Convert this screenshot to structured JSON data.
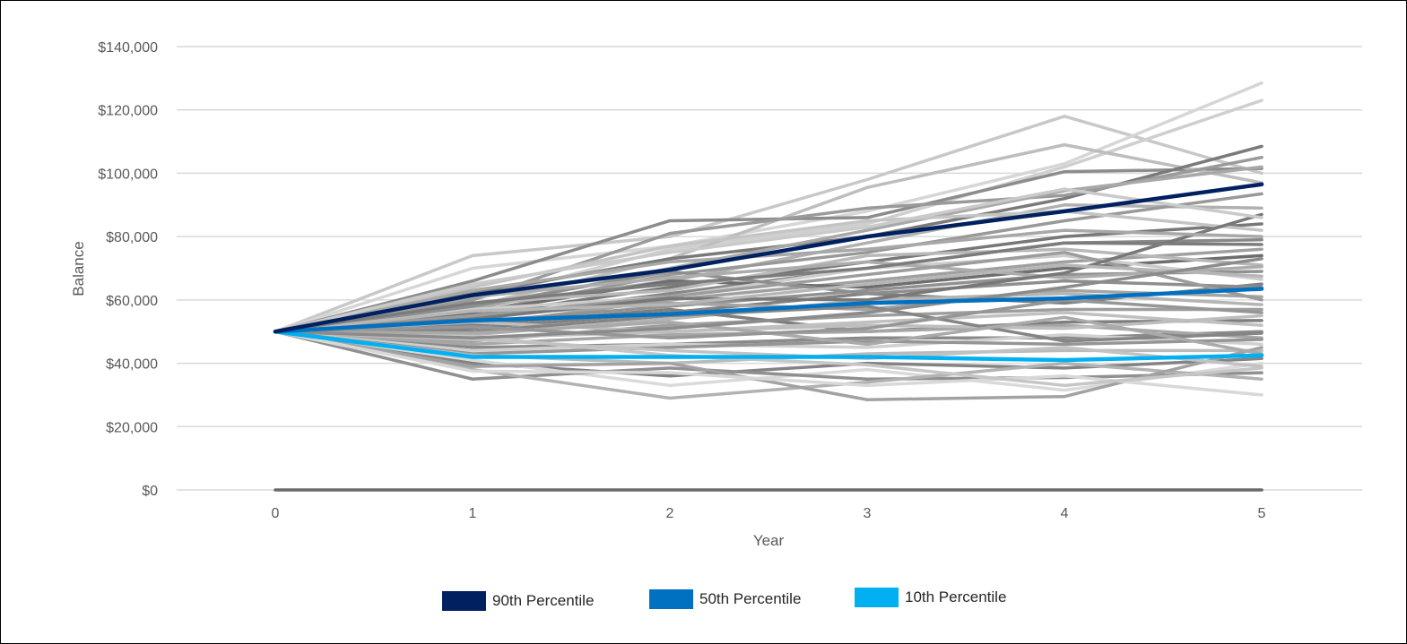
{
  "chart_data": {
    "type": "line",
    "title": "",
    "xlabel": "Year",
    "ylabel": "Balance",
    "x": [
      0,
      1,
      2,
      3,
      4,
      5
    ],
    "x_tick_labels": [
      "0",
      "1",
      "2",
      "3",
      "4",
      "5"
    ],
    "ylim": [
      0,
      140000
    ],
    "y_ticks": [
      0,
      20000,
      40000,
      60000,
      80000,
      100000,
      120000,
      140000
    ],
    "y_tick_labels": [
      "$0",
      "$20,000",
      "$40,000",
      "$60,000",
      "$80,000",
      "$100,000",
      "$120,000",
      "$140,000"
    ],
    "grid": "horizontal",
    "legend_position": "bottom",
    "highlight_series": [
      {
        "name": "90th Percentile",
        "color": "#002060",
        "values": [
          50000,
          61500,
          69500,
          80000,
          88000,
          96500
        ]
      },
      {
        "name": "50th Percentile",
        "color": "#0070C0",
        "values": [
          50000,
          53500,
          55500,
          59000,
          60500,
          63500
        ]
      },
      {
        "name": "10th Percentile",
        "color": "#00B0F0",
        "values": [
          50000,
          42000,
          42000,
          42000,
          41000,
          42500
        ]
      }
    ],
    "simulation_series": [
      {
        "color": "#c8c8c8",
        "values": [
          50000,
          74000,
          80000,
          98000,
          118000,
          100000
        ]
      },
      {
        "color": "#d6d6d6",
        "values": [
          50000,
          70000,
          77000,
          88000,
          103000,
          128500
        ]
      },
      {
        "color": "#cfcfcf",
        "values": [
          50000,
          60000,
          76000,
          84000,
          102000,
          123000
        ]
      },
      {
        "color": "#8c8c8c",
        "values": [
          50000,
          66000,
          85000,
          86000,
          100500,
          101500
        ]
      },
      {
        "color": "#bdbdbd",
        "values": [
          50000,
          58000,
          73000,
          95500,
          109000,
          97000
        ]
      },
      {
        "color": "#7a7a7a",
        "values": [
          50000,
          62000,
          73000,
          80000,
          92000,
          108500
        ]
      },
      {
        "color": "#9a9a9a",
        "values": [
          50000,
          60000,
          81000,
          89000,
          93000,
          105000
        ]
      },
      {
        "color": "#a8a8a8",
        "values": [
          50000,
          57000,
          70000,
          82000,
          94500,
          102000
        ]
      },
      {
        "color": "#777777",
        "values": [
          50000,
          55000,
          64000,
          72000,
          80000,
          84000
        ]
      },
      {
        "color": "#b0b0b0",
        "values": [
          50000,
          58000,
          66000,
          78000,
          90000,
          89000
        ]
      },
      {
        "color": "#999999",
        "values": [
          50000,
          56000,
          68000,
          75000,
          85000,
          93500
        ]
      },
      {
        "color": "#c4c4c4",
        "values": [
          50000,
          64000,
          77000,
          85000,
          88000,
          82000
        ]
      },
      {
        "color": "#888888",
        "values": [
          50000,
          54000,
          62000,
          70000,
          78000,
          79000
        ]
      },
      {
        "color": "#a0a0a0",
        "values": [
          50000,
          52000,
          60000,
          66000,
          72000,
          76000
        ]
      },
      {
        "color": "#6e6e6e",
        "values": [
          50000,
          56000,
          66000,
          64000,
          70000,
          74000
        ]
      },
      {
        "color": "#b8b8b8",
        "values": [
          50000,
          59000,
          63000,
          74000,
          76000,
          71000
        ]
      },
      {
        "color": "#929292",
        "values": [
          50000,
          53000,
          58000,
          63000,
          68000,
          69000
        ]
      },
      {
        "color": "#cccccc",
        "values": [
          50000,
          57000,
          61000,
          70000,
          74000,
          66500
        ]
      },
      {
        "color": "#808080",
        "values": [
          50000,
          51000,
          56000,
          62000,
          59000,
          65000
        ]
      },
      {
        "color": "#a4a4a4",
        "values": [
          50000,
          55000,
          59000,
          57000,
          63000,
          61000
        ]
      },
      {
        "color": "#b4b4b4",
        "values": [
          50000,
          49000,
          54000,
          60000,
          62000,
          58500
        ]
      },
      {
        "color": "#9e9e9e",
        "values": [
          50000,
          47000,
          52000,
          55000,
          57000,
          57000
        ]
      },
      {
        "color": "#7f7f7f",
        "values": [
          50000,
          52000,
          57000,
          50000,
          53000,
          53500
        ]
      },
      {
        "color": "#c0c0c0",
        "values": [
          50000,
          48000,
          50000,
          53000,
          56000,
          52000
        ]
      },
      {
        "color": "#8a8a8a",
        "values": [
          50000,
          45000,
          46000,
          48000,
          48000,
          50000
        ]
      },
      {
        "color": "#a6a6a6",
        "values": [
          50000,
          46000,
          49000,
          50000,
          52000,
          48000
        ]
      },
      {
        "color": "#d0d0d0",
        "values": [
          50000,
          44000,
          46000,
          45000,
          49000,
          46000
        ]
      },
      {
        "color": "#959595",
        "values": [
          50000,
          43000,
          45000,
          47000,
          46000,
          47500
        ]
      },
      {
        "color": "#bababa",
        "values": [
          50000,
          42500,
          40000,
          43000,
          44000,
          44000
        ]
      },
      {
        "color": "#838383",
        "values": [
          50000,
          40000,
          36000,
          40000,
          38500,
          41500
        ]
      },
      {
        "color": "#dadada",
        "values": [
          50000,
          41000,
          33000,
          38000,
          31500,
          40000
        ]
      },
      {
        "color": "#909090",
        "values": [
          50000,
          35000,
          38500,
          35000,
          35500,
          37000
        ]
      },
      {
        "color": "#b2b2b2",
        "values": [
          50000,
          38000,
          29000,
          34000,
          40000,
          35000
        ]
      },
      {
        "color": "#a2a2a2",
        "values": [
          50000,
          39000,
          40000,
          28500,
          29500,
          45000
        ]
      },
      {
        "color": "#d8d8d8",
        "values": [
          50000,
          37500,
          37000,
          33000,
          36000,
          30000
        ]
      },
      {
        "color": "#c6c6c6",
        "values": [
          50000,
          48500,
          42500,
          39500,
          33000,
          38500
        ]
      },
      {
        "color": "#8e8e8e",
        "values": [
          50000,
          58000,
          69000,
          62000,
          66000,
          64000
        ]
      },
      {
        "color": "#acacac",
        "values": [
          50000,
          61000,
          67000,
          72000,
          67000,
          70500
        ]
      },
      {
        "color": "#9c9c9c",
        "values": [
          50000,
          55000,
          61000,
          68000,
          75000,
          60000
        ]
      },
      {
        "color": "#787878",
        "values": [
          50000,
          54000,
          60500,
          60000,
          68500,
          87000
        ]
      },
      {
        "color": "#bebebe",
        "values": [
          50000,
          53000,
          50000,
          52000,
          51000,
          55000
        ]
      },
      {
        "color": "#858585",
        "values": [
          50000,
          50000,
          55000,
          58000,
          47000,
          49500
        ]
      },
      {
        "color": "#aaaaaa",
        "values": [
          50000,
          49500,
          53000,
          46000,
          54500,
          43000
        ]
      },
      {
        "color": "#c2c2c2",
        "values": [
          50000,
          47500,
          44000,
          41500,
          45000,
          39000
        ]
      },
      {
        "color": "#969696",
        "values": [
          50000,
          51500,
          48000,
          51000,
          60000,
          56000
        ]
      },
      {
        "color": "#b6b6b6",
        "values": [
          50000,
          56500,
          58500,
          65000,
          71000,
          67500
        ]
      },
      {
        "color": "#7c7c7c",
        "values": [
          50000,
          59000,
          65000,
          70000,
          78000,
          77500
        ]
      },
      {
        "color": "#a8a8a8",
        "values": [
          50000,
          63000,
          72000,
          76000,
          82000,
          80000
        ]
      },
      {
        "color": "#cacaca",
        "values": [
          50000,
          65000,
          75000,
          83000,
          95000,
          86000
        ]
      },
      {
        "color": "#8b8b8b",
        "values": [
          50000,
          48000,
          51000,
          56000,
          64000,
          73000
        ]
      },
      {
        "color": "#6a6a6a",
        "values": [
          0,
          0,
          0,
          0,
          0,
          0
        ]
      }
    ]
  },
  "legend": [
    {
      "label": "90th Percentile",
      "color": "#002060"
    },
    {
      "label": "50th Percentile",
      "color": "#0070C0"
    },
    {
      "label": "10th Percentile",
      "color": "#00B0F0"
    }
  ]
}
